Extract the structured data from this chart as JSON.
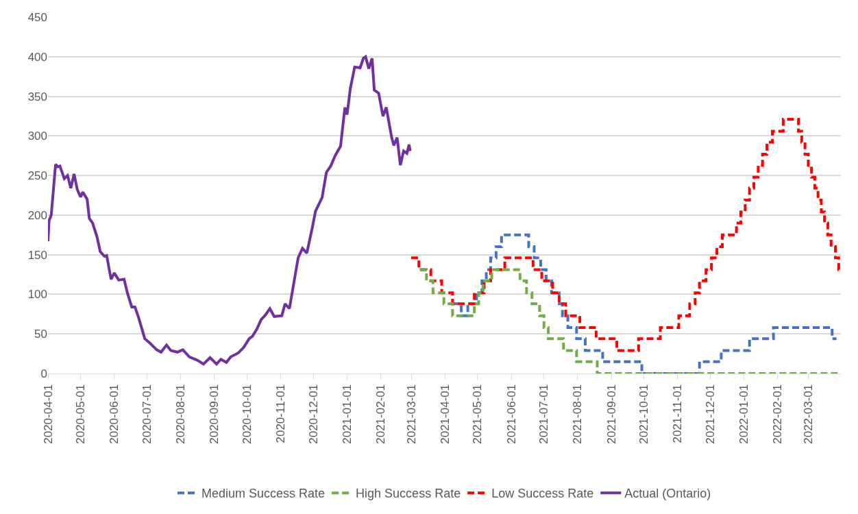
{
  "chart_data": {
    "type": "line",
    "xlim": [
      "2020-04-01",
      "2022-03-31"
    ],
    "xticks": [
      "2020-04-01",
      "2020-05-01",
      "2020-06-01",
      "2020-07-01",
      "2020-08-01",
      "2020-09-01",
      "2020-10-01",
      "2020-11-01",
      "2020-12-01",
      "2021-01-01",
      "2021-02-01",
      "2021-03-01",
      "2021-04-01",
      "2021-05-01",
      "2021-06-01",
      "2021-07-01",
      "2021-08-01",
      "2021-09-01",
      "2021-10-01",
      "2021-11-01",
      "2021-12-01",
      "2022-01-01",
      "2022-02-01",
      "2022-03-01"
    ],
    "ylim": [
      0,
      450
    ],
    "yticks": [
      0,
      50,
      100,
      150,
      200,
      250,
      300,
      350,
      400,
      450
    ],
    "grid": "y",
    "legend": "bottom",
    "series": [
      {
        "name": "Medium Success Rate",
        "type": "step",
        "color": "#4472c4",
        "line_style": "dashed",
        "x": [
          "2021-04-08",
          "2021-04-16",
          "2021-04-22",
          "2021-04-30",
          "2021-05-05",
          "2021-05-09",
          "2021-05-13",
          "2021-05-18",
          "2021-05-23",
          "2021-06-17",
          "2021-06-22",
          "2021-06-28",
          "2021-07-03",
          "2021-07-08",
          "2021-07-15",
          "2021-07-18",
          "2021-07-23",
          "2021-07-31",
          "2021-08-08",
          "2021-08-24",
          "2021-09-29",
          "2021-11-21",
          "2021-12-11",
          "2022-01-06",
          "2022-01-28",
          "2022-03-23",
          "2022-03-27"
        ],
        "values": [
          88,
          73,
          88,
          102,
          117,
          131,
          146,
          160,
          175,
          160,
          146,
          131,
          117,
          102,
          88,
          73,
          58,
          44,
          29,
          15,
          0,
          15,
          29,
          44,
          58,
          44,
          44
        ]
      },
      {
        "name": "High Success Rate",
        "type": "step",
        "color": "#70ad47",
        "line_style": "dashed",
        "x": [
          "2021-03-09",
          "2021-03-15",
          "2021-03-21",
          "2021-03-31",
          "2021-04-08",
          "2021-04-28",
          "2021-05-02",
          "2021-05-06",
          "2021-05-14",
          "2021-06-09",
          "2021-06-15",
          "2021-06-20",
          "2021-06-27",
          "2021-07-01",
          "2021-07-05",
          "2021-07-19",
          "2021-07-31",
          "2021-08-19",
          "2022-03-31"
        ],
        "values": [
          131,
          117,
          102,
          88,
          73,
          88,
          102,
          117,
          131,
          117,
          102,
          88,
          73,
          58,
          44,
          29,
          15,
          0,
          0
        ]
      },
      {
        "name": "Low Success Rate",
        "type": "step",
        "color": "#ff0000",
        "line_style": "dashed",
        "x": [
          "2021-03-01",
          "2021-03-08",
          "2021-03-19",
          "2021-03-29",
          "2021-04-08",
          "2021-04-28",
          "2021-05-07",
          "2021-05-13",
          "2021-05-26",
          "2021-06-21",
          "2021-06-29",
          "2021-07-09",
          "2021-07-15",
          "2021-07-21",
          "2021-08-03",
          "2021-08-18",
          "2021-09-06",
          "2021-09-26",
          "2021-10-16",
          "2021-11-02",
          "2021-11-12",
          "2021-11-17",
          "2021-11-21",
          "2021-11-27",
          "2021-12-02",
          "2021-12-07",
          "2021-12-12",
          "2021-12-25",
          "2021-12-29",
          "2022-01-02",
          "2022-01-06",
          "2022-01-10",
          "2022-01-14",
          "2022-01-18",
          "2022-01-22",
          "2022-01-27",
          "2022-02-06",
          "2022-02-20",
          "2022-02-23",
          "2022-02-26",
          "2022-03-01",
          "2022-03-04",
          "2022-03-07",
          "2022-03-10",
          "2022-03-13",
          "2022-03-16",
          "2022-03-19",
          "2022-03-22",
          "2022-03-26",
          "2022-03-29",
          "2022-03-31"
        ],
        "values": [
          146,
          131,
          117,
          102,
          88,
          102,
          117,
          131,
          146,
          131,
          117,
          102,
          88,
          73,
          58,
          44,
          29,
          44,
          58,
          73,
          88,
          102,
          117,
          131,
          146,
          160,
          175,
          190,
          204,
          219,
          234,
          248,
          263,
          277,
          292,
          306,
          321,
          306,
          292,
          277,
          263,
          248,
          234,
          219,
          204,
          190,
          175,
          160,
          146,
          131,
          131
        ]
      },
      {
        "name": "Actual (Ontario)",
        "color": "#7030a0",
        "line_style": "solid",
        "x": [
          "2020-04-01",
          "2020-04-02",
          "2020-04-04",
          "2020-04-08",
          "2020-04-10",
          "2020-04-12",
          "2020-04-16",
          "2020-04-19",
          "2020-04-22",
          "2020-04-25",
          "2020-04-28",
          "2020-05-01",
          "2020-05-03",
          "2020-05-07",
          "2020-05-09",
          "2020-05-12",
          "2020-05-16",
          "2020-05-19",
          "2020-05-23",
          "2020-05-25",
          "2020-05-29",
          "2020-06-01",
          "2020-06-05",
          "2020-06-10",
          "2020-06-13",
          "2020-06-17",
          "2020-06-20",
          "2020-06-23",
          "2020-06-29",
          "2020-07-04",
          "2020-07-10",
          "2020-07-14",
          "2020-07-19",
          "2020-07-23",
          "2020-07-29",
          "2020-08-03",
          "2020-08-09",
          "2020-08-16",
          "2020-08-22",
          "2020-08-28",
          "2020-09-03",
          "2020-09-07",
          "2020-09-12",
          "2020-09-16",
          "2020-09-23",
          "2020-09-28",
          "2020-10-03",
          "2020-10-06",
          "2020-10-10",
          "2020-10-14",
          "2020-10-18",
          "2020-10-22",
          "2020-10-26",
          "2020-11-02",
          "2020-11-05",
          "2020-11-09",
          "2020-11-13",
          "2020-11-17",
          "2020-11-21",
          "2020-11-25",
          "2020-11-30",
          "2020-12-03",
          "2020-12-09",
          "2020-12-13",
          "2020-12-17",
          "2020-12-21",
          "2020-12-26",
          "2020-12-30",
          "2021-01-01",
          "2021-01-04",
          "2021-01-08",
          "2021-01-13",
          "2021-01-16",
          "2021-01-18",
          "2021-01-21",
          "2021-01-24",
          "2021-01-26",
          "2021-01-30",
          "2021-02-03",
          "2021-02-06",
          "2021-02-11",
          "2021-02-13",
          "2021-02-16",
          "2021-02-19",
          "2021-02-22",
          "2021-02-25",
          "2021-02-27",
          "2021-02-28"
        ],
        "values": [
          167,
          193,
          200,
          264,
          261,
          262,
          246,
          250,
          234,
          252,
          232,
          223,
          229,
          220,
          196,
          190,
          173,
          154,
          148,
          149,
          119,
          127,
          118,
          119,
          102,
          84,
          84,
          72,
          44,
          38,
          30,
          27,
          36,
          29,
          27,
          30,
          21,
          17,
          12,
          20,
          12,
          18,
          14,
          21,
          26,
          33,
          44,
          47,
          56,
          68,
          74,
          82,
          72,
          73,
          88,
          82,
          114,
          146,
          158,
          152,
          184,
          205,
          222,
          254,
          262,
          275,
          287,
          336,
          327,
          360,
          387,
          386,
          398,
          400,
          385,
          398,
          358,
          354,
          325,
          336,
          298,
          288,
          298,
          263,
          281,
          278,
          289,
          281
        ]
      }
    ]
  }
}
